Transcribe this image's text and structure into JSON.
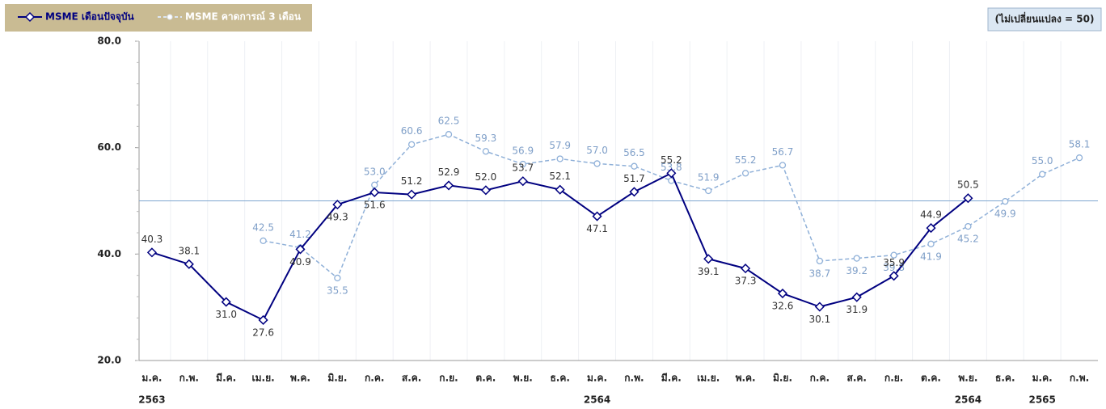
{
  "chart_data": {
    "type": "line",
    "annotation": "(ไม่เปลี่ยนแปลง = 50)",
    "reference_line": 50,
    "categories": [
      "ม.ค.",
      "ก.พ.",
      "มี.ค.",
      "เม.ย.",
      "พ.ค.",
      "มิ.ย.",
      "ก.ค.",
      "ส.ค.",
      "ก.ย.",
      "ต.ค.",
      "พ.ย.",
      "ธ.ค.",
      "ม.ค.",
      "ก.พ.",
      "มี.ค.",
      "เม.ย.",
      "พ.ค.",
      "มิ.ย.",
      "ก.ค.",
      "ส.ค.",
      "ก.ย.",
      "ต.ค.",
      "พ.ย.",
      "ธ.ค.",
      "ม.ค.",
      "ก.พ."
    ],
    "years": [
      "2563",
      null,
      null,
      null,
      null,
      null,
      null,
      null,
      null,
      null,
      null,
      null,
      "2564",
      null,
      null,
      null,
      null,
      null,
      null,
      null,
      null,
      null,
      "2564",
      null,
      "2565",
      null
    ],
    "ylim": [
      20,
      80
    ],
    "yticks": [
      {
        "value": 20,
        "label": "20.0"
      },
      {
        "value": 40,
        "label": "40.0"
      },
      {
        "value": 60,
        "label": "60.0"
      },
      {
        "value": 80,
        "label": "80.0"
      }
    ],
    "series": [
      {
        "name": "MSME เดือนปัจจุบัน",
        "color": "#000080",
        "values": [
          40.3,
          38.1,
          31.0,
          27.6,
          40.9,
          49.3,
          51.6,
          51.2,
          52.9,
          52.0,
          53.7,
          52.1,
          47.1,
          51.7,
          55.2,
          39.1,
          37.3,
          32.6,
          30.1,
          31.9,
          35.9,
          44.9,
          50.5,
          null,
          null,
          null
        ],
        "value_labels": [
          "40.3",
          "38.1",
          "31.0",
          "27.6",
          "40.9",
          "49.3",
          "51.6",
          "51.2",
          "52.9",
          "52.0",
          "53.7",
          "52.1",
          "47.1",
          "51.7",
          "55.2",
          "39.1",
          "37.3",
          "32.6",
          "30.1",
          "31.9",
          "35.9",
          "44.9",
          "50.5",
          null,
          null,
          null
        ]
      },
      {
        "name": "MSME คาดการณ์ 3 เดือน",
        "color": "#8fb0d8",
        "values": [
          null,
          null,
          null,
          42.5,
          41.2,
          35.5,
          53.0,
          60.6,
          62.5,
          59.3,
          56.9,
          57.9,
          57.0,
          56.5,
          53.8,
          51.9,
          55.2,
          56.7,
          38.7,
          39.2,
          39.8,
          41.9,
          45.2,
          49.9,
          55.0,
          58.1
        ],
        "value_labels": [
          null,
          null,
          null,
          "42.5",
          "41.2",
          "35.5",
          "53.0",
          "60.6",
          "62.5",
          "59.3",
          "56.9",
          "57.9",
          "57.0",
          "56.5",
          "53.8",
          "51.9",
          "55.2",
          "56.7",
          "38.7",
          "39.2",
          "39.8",
          "41.9",
          "45.2",
          "49.9",
          "55.0",
          "58.1"
        ]
      }
    ]
  }
}
